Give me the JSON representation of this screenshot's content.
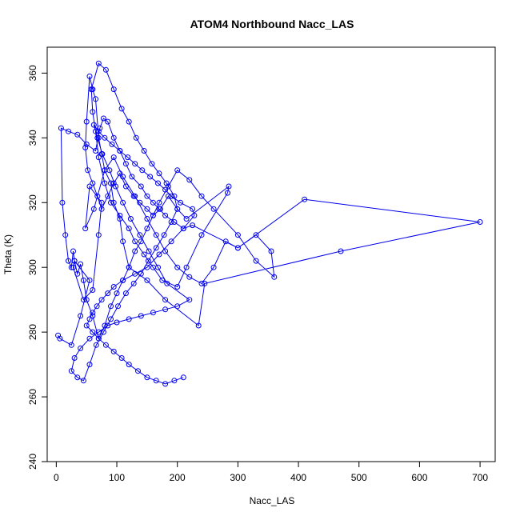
{
  "chart_data": {
    "type": "line",
    "title": "ATOM4 Northbound Nacc_LAS",
    "xlabel": "Nacc_LAS",
    "ylabel": "Theta (K)",
    "xlim": [
      -15,
      725
    ],
    "ylim": [
      240,
      368
    ],
    "xticks": [
      "0",
      "100",
      "200",
      "300",
      "400",
      "500",
      "600",
      "700"
    ],
    "yticks": [
      "240",
      "260",
      "280",
      "300",
      "320",
      "340",
      "360"
    ],
    "grid": false,
    "series_color": "#0000ee",
    "series": [
      {
        "x": [
          3,
          6,
          25,
          40,
          55,
          30,
          28,
          45,
          60,
          70,
          75,
          55,
          48,
          62,
          80,
          95,
          110,
          130,
          150,
          165,
          180,
          200,
          220,
          240,
          260,
          280,
          300,
          330,
          355,
          360,
          330,
          300,
          260,
          240,
          220,
          200,
          185,
          170,
          160,
          150,
          140,
          130,
          120,
          110,
          100,
          90,
          80,
          70,
          60,
          50,
          45,
          40,
          35,
          30,
          28,
          25,
          20,
          15,
          10,
          8,
          20,
          35,
          50,
          65,
          72,
          78,
          85,
          95,
          105,
          115,
          125,
          140,
          150,
          160,
          170,
          180,
          195,
          210,
          225,
          300,
          410,
          700,
          470,
          245,
          235,
          180,
          150,
          120,
          110,
          105,
          95,
          90,
          80,
          75,
          70,
          65,
          60,
          55,
          50,
          48,
          52,
          60,
          68,
          75,
          85,
          95,
          105,
          115,
          128,
          138,
          150,
          160,
          172,
          185,
          200,
          215,
          285,
          283,
          240,
          215,
          200,
          175,
          160,
          145,
          130,
          120,
          105,
          90,
          80,
          70,
          65,
          60,
          58,
          70,
          82,
          95,
          108,
          120,
          132,
          145,
          158,
          170,
          182,
          195,
          200,
          190,
          178,
          165,
          152,
          140,
          128,
          115,
          102,
          90,
          78,
          66,
          55,
          45,
          35,
          25,
          30,
          40,
          55,
          70,
          85,
          100,
          120,
          140,
          160,
          180,
          200,
          220,
          183,
          168,
          153,
          138,
          123,
          110,
          98,
          88,
          76,
          68,
          62,
          70,
          80,
          92,
          105,
          118,
          130,
          142,
          155,
          168,
          180,
          190,
          205,
          225,
          228,
          210,
          190,
          170,
          150,
          130,
          110,
          95,
          85,
          75,
          67,
          60,
          55,
          50,
          60,
          70,
          82,
          95,
          108,
          120,
          135,
          150,
          165,
          180,
          195,
          210
        ],
        "y": [
          279,
          278,
          276,
          285,
          296,
          302,
          300,
          290,
          293,
          310,
          320,
          325,
          312,
          318,
          330,
          334,
          328,
          322,
          315,
          310,
          305,
          300,
          297,
          295,
          300,
          308,
          306,
          310,
          305,
          297,
          302,
          310,
          318,
          322,
          327,
          330,
          325,
          320,
          316,
          312,
          308,
          305,
          300,
          296,
          292,
          288,
          282,
          278,
          285,
          290,
          296,
          301,
          298,
          302,
          305,
          300,
          302,
          310,
          320,
          343,
          342,
          341,
          338,
          336,
          343,
          346,
          345,
          340,
          336,
          332,
          328,
          325,
          322,
          320,
          318,
          316,
          314,
          312,
          313,
          306,
          321,
          314,
          305,
          295,
          282,
          290,
          296,
          300,
          308,
          315,
          320,
          326,
          330,
          335,
          340,
          352,
          355,
          359,
          345,
          337,
          330,
          326,
          322,
          318,
          322,
          326,
          329,
          325,
          322,
          320,
          318,
          316,
          318,
          322,
          318,
          315,
          325,
          323,
          310,
          300,
          294,
          296,
          300,
          304,
          308,
          312,
          316,
          320,
          326,
          334,
          342,
          348,
          355,
          363,
          361,
          355,
          349,
          345,
          340,
          336,
          332,
          329,
          326,
          322,
          318,
          314,
          310,
          306,
          302,
          298,
          295,
          292,
          288,
          284,
          280,
          276,
          270,
          265,
          266,
          268,
          272,
          275,
          278,
          280,
          282,
          283,
          284,
          285,
          286,
          287,
          288,
          290,
          295,
          300,
          305,
          310,
          315,
          320,
          325,
          330,
          335,
          340,
          344,
          342,
          340,
          338,
          336,
          334,
          332,
          330,
          328,
          326,
          324,
          322,
          320,
          318,
          316,
          312,
          308,
          304,
          300,
          298,
          296,
          294,
          292,
          290,
          288,
          286,
          284,
          282,
          280,
          278,
          276,
          274,
          272,
          270,
          268,
          266,
          265,
          264,
          265,
          266
        ]
      }
    ]
  }
}
